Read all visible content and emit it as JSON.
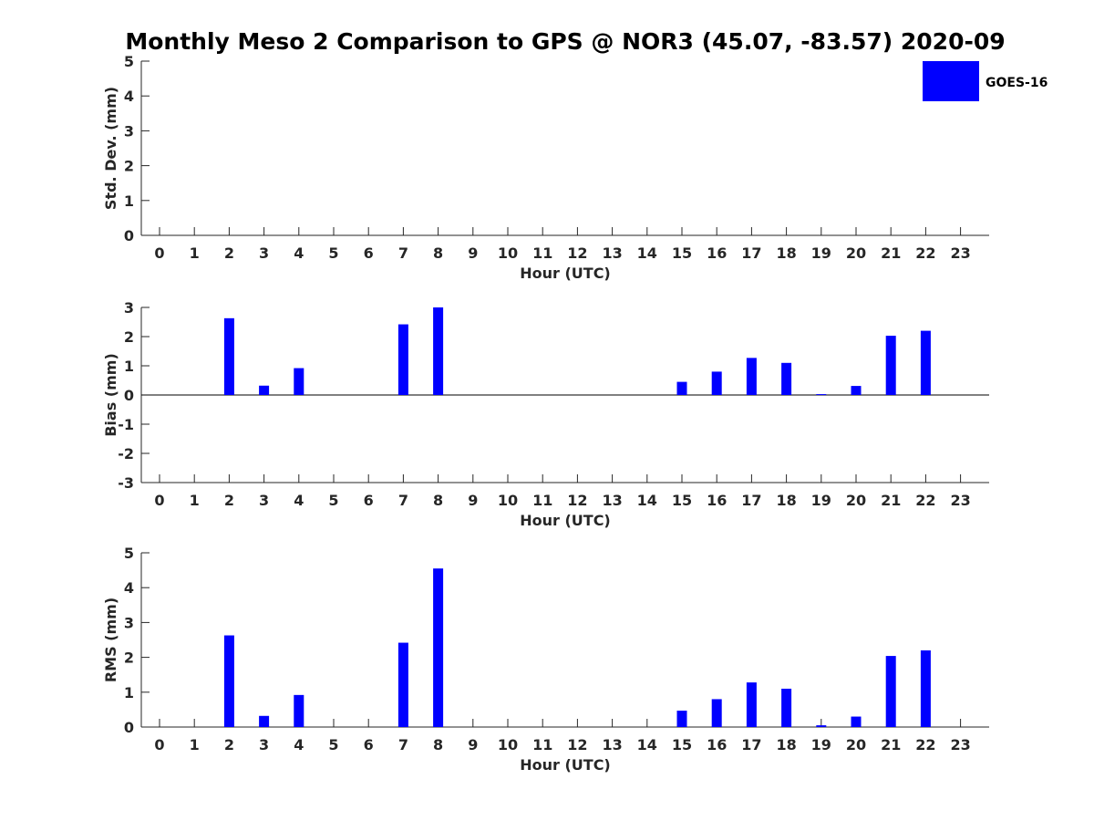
{
  "title": "Monthly Meso 2 Comparison to GPS @ NOR3 (45.07, -83.57) 2020-09",
  "legend": {
    "label": "GOES-16",
    "color": "#0000ff",
    "placement": "top-right"
  },
  "chart_data": [
    {
      "type": "bar",
      "ylabel": "Std. Dev. (mm)",
      "xlabel": "Hour (UTC)",
      "ylim": [
        0,
        5
      ],
      "yticks": [
        0,
        1,
        2,
        3,
        4,
        5
      ],
      "categories": [
        "0",
        "1",
        "2",
        "3",
        "4",
        "5",
        "6",
        "7",
        "8",
        "9",
        "10",
        "11",
        "12",
        "13",
        "14",
        "15",
        "16",
        "17",
        "18",
        "19",
        "20",
        "21",
        "22",
        "23"
      ],
      "series": [
        {
          "name": "GOES-16",
          "color": "#0000ff",
          "values": [
            null,
            null,
            null,
            null,
            null,
            null,
            null,
            null,
            null,
            null,
            null,
            null,
            null,
            null,
            null,
            null,
            null,
            null,
            null,
            null,
            null,
            null,
            null,
            null
          ]
        }
      ]
    },
    {
      "type": "bar",
      "ylabel": "Bias (mm)",
      "xlabel": "Hour (UTC)",
      "ylim": [
        -3,
        3
      ],
      "yticks": [
        -3,
        -2,
        -1,
        0,
        1,
        2,
        3
      ],
      "categories": [
        "0",
        "1",
        "2",
        "3",
        "4",
        "5",
        "6",
        "7",
        "8",
        "9",
        "10",
        "11",
        "12",
        "13",
        "14",
        "15",
        "16",
        "17",
        "18",
        "19",
        "20",
        "21",
        "22",
        "23"
      ],
      "series": [
        {
          "name": "GOES-16",
          "color": "#0000ff",
          "values": [
            null,
            null,
            2.63,
            0.32,
            0.92,
            null,
            null,
            2.42,
            3.0,
            null,
            null,
            null,
            null,
            null,
            null,
            0.45,
            0.8,
            1.27,
            1.1,
            0.03,
            0.31,
            2.03,
            2.2,
            null
          ]
        }
      ]
    },
    {
      "type": "bar",
      "ylabel": "RMS (mm)",
      "xlabel": "Hour (UTC)",
      "ylim": [
        0,
        5
      ],
      "yticks": [
        0,
        1,
        2,
        3,
        4,
        5
      ],
      "categories": [
        "0",
        "1",
        "2",
        "3",
        "4",
        "5",
        "6",
        "7",
        "8",
        "9",
        "10",
        "11",
        "12",
        "13",
        "14",
        "15",
        "16",
        "17",
        "18",
        "19",
        "20",
        "21",
        "22",
        "23"
      ],
      "series": [
        {
          "name": "GOES-16",
          "color": "#0000ff",
          "values": [
            null,
            null,
            2.63,
            0.32,
            0.92,
            null,
            null,
            2.42,
            4.55,
            null,
            null,
            null,
            null,
            null,
            null,
            0.47,
            0.8,
            1.28,
            1.1,
            0.05,
            0.3,
            2.04,
            2.2,
            null
          ]
        }
      ]
    }
  ]
}
